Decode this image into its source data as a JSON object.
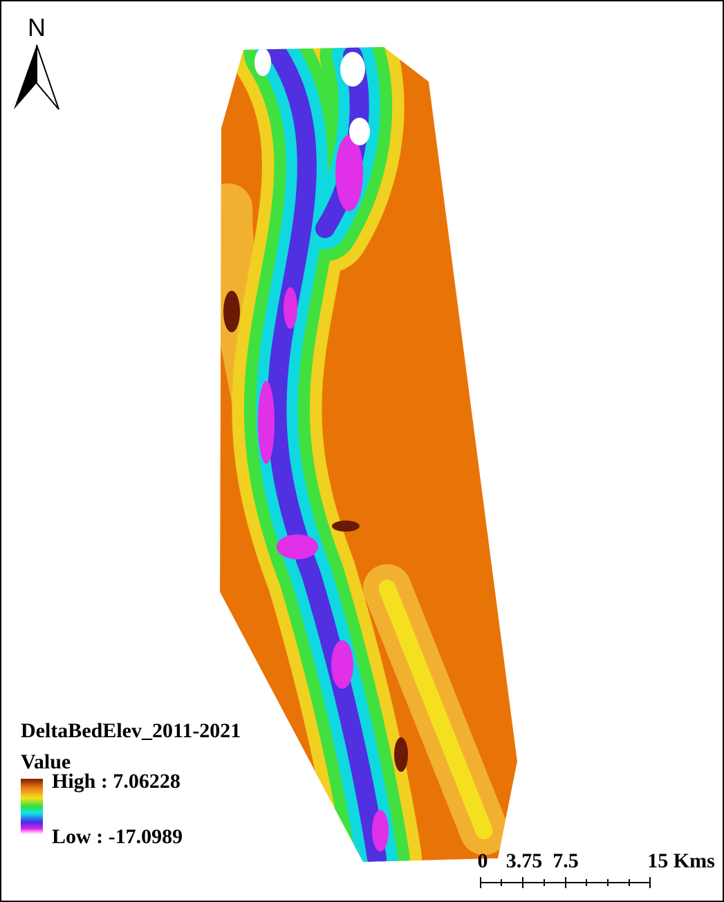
{
  "north_arrow": {
    "label": "N"
  },
  "legend": {
    "title": "DeltaBedElev_2011-2021",
    "field": "Value",
    "high": "High : 7.06228",
    "low": "Low : -17.0989"
  },
  "scale_bar": {
    "labels": [
      "0",
      "3.75",
      "7.5",
      "15 Kms"
    ]
  }
}
